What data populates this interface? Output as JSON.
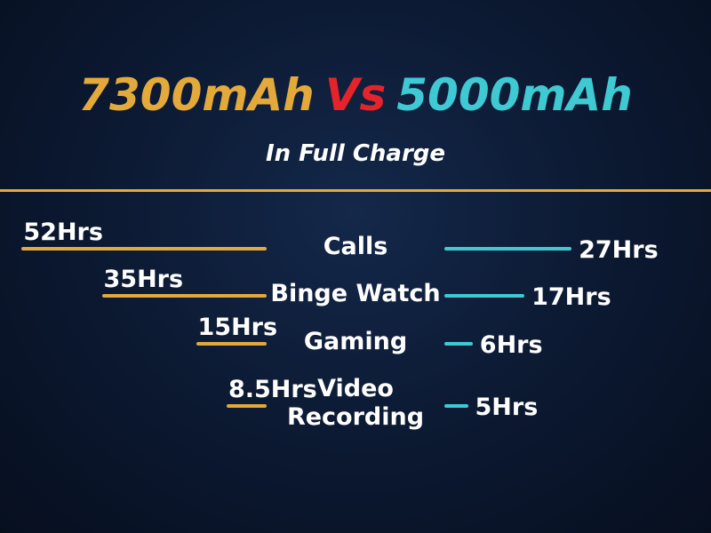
{
  "chart_data": {
    "type": "butterfly",
    "versus": "Vs",
    "subtitle": "In Full Charge",
    "categories": [
      "Calls",
      "Binge Watch",
      "Gaming",
      "Video Recording"
    ],
    "series": [
      {
        "name": "7300mAh",
        "color": "#e3a93b",
        "values": [
          52,
          35,
          15,
          8.5
        ],
        "value_labels": [
          "52Hrs",
          "35Hrs",
          "15Hrs",
          "8.5Hrs"
        ]
      },
      {
        "name": "5000mAh",
        "color": "#3fc9d3",
        "values": [
          27,
          17,
          6,
          5
        ],
        "value_labels": [
          "27Hrs",
          "17Hrs",
          "6Hrs",
          "5Hrs"
        ]
      }
    ],
    "versus_color": "#e5232b"
  }
}
